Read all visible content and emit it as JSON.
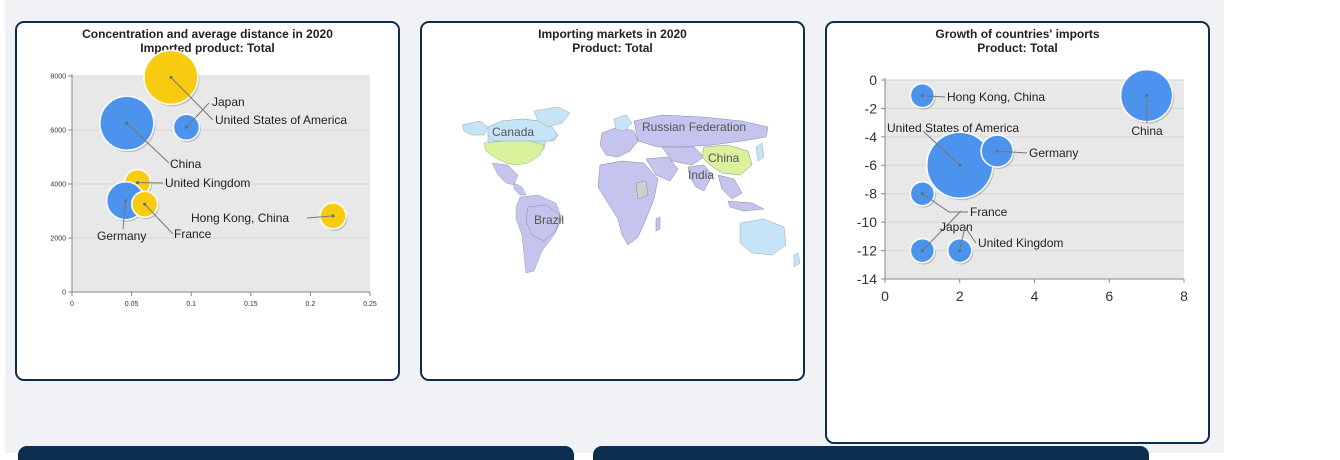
{
  "panels": [
    {
      "title_line1": "Concentration and average distance in 2020",
      "title_line2": "Imported product: Total"
    },
    {
      "title_line1": "Importing markets in 2020",
      "title_line2": "Product: Total"
    },
    {
      "title_line1": "Growth of countries' imports",
      "title_line2": "Product: Total"
    }
  ],
  "colors": {
    "blue": "#4b93ec",
    "yellow": "#f7cc10",
    "map_purple": "#c4c4ee",
    "map_blue": "#c5e4f8",
    "map_green": "#d9f29b",
    "map_gray": "#cfcfcf",
    "border": "#0d2f4f"
  },
  "chart_data": [
    {
      "type": "scatter",
      "title": "Concentration and average distance in 2020",
      "subtitle": "Imported product: Total",
      "xlim": [
        0,
        0.25
      ],
      "ylim": [
        0,
        8000
      ],
      "x_ticks": [
        "0",
        "0.05",
        "0.1",
        "0.15",
        "0.2",
        "0.25"
      ],
      "y_ticks": [
        "0",
        "2000",
        "4000",
        "6000",
        "8000"
      ],
      "points": [
        {
          "name": "United States of America",
          "x": 0.083,
          "y": 7950,
          "color": "yellow",
          "size": "large"
        },
        {
          "name": "China",
          "x": 0.046,
          "y": 6250,
          "color": "blue",
          "size": "large"
        },
        {
          "name": "Japan",
          "x": 0.096,
          "y": 6100,
          "color": "blue",
          "size": "small"
        },
        {
          "name": "United Kingdom",
          "x": 0.055,
          "y": 4050,
          "color": "yellow",
          "size": "small"
        },
        {
          "name": "Germany",
          "x": 0.045,
          "y": 3380,
          "color": "blue",
          "size": "medium"
        },
        {
          "name": "France",
          "x": 0.061,
          "y": 3250,
          "color": "yellow",
          "size": "small"
        },
        {
          "name": "Hong Kong, China",
          "x": 0.219,
          "y": 2820,
          "color": "yellow",
          "size": "small"
        }
      ]
    },
    {
      "type": "map",
      "title": "Importing markets in 2020",
      "subtitle": "Product: Total",
      "labels": [
        "Canada",
        "Russian Federation",
        "China",
        "India",
        "Brazil"
      ]
    },
    {
      "type": "scatter",
      "title": "Growth of countries' imports",
      "subtitle": "Product: Total",
      "xlim": [
        0,
        8
      ],
      "ylim": [
        -14,
        0
      ],
      "x_ticks": [
        "0",
        "2",
        "4",
        "6",
        "8"
      ],
      "y_ticks": [
        "0",
        "-2",
        "-4",
        "-6",
        "-8",
        "-10",
        "-12",
        "-14"
      ],
      "points": [
        {
          "name": "Hong Kong, China",
          "x": 1,
          "y": -1.1,
          "color": "blue",
          "size": "small"
        },
        {
          "name": "China",
          "x": 7,
          "y": -1.1,
          "color": "blue",
          "size": "large"
        },
        {
          "name": "United States of America",
          "x": 2,
          "y": -6,
          "color": "blue",
          "size": "xlarge"
        },
        {
          "name": "Germany",
          "x": 3,
          "y": -5,
          "color": "blue",
          "size": "medium"
        },
        {
          "name": "France",
          "x": 1,
          "y": -8,
          "color": "blue",
          "size": "small"
        },
        {
          "name": "Japan",
          "x": 1,
          "y": -12,
          "color": "blue",
          "size": "small"
        },
        {
          "name": "United Kingdom",
          "x": 2,
          "y": -12,
          "color": "blue",
          "size": "small"
        }
      ]
    }
  ]
}
